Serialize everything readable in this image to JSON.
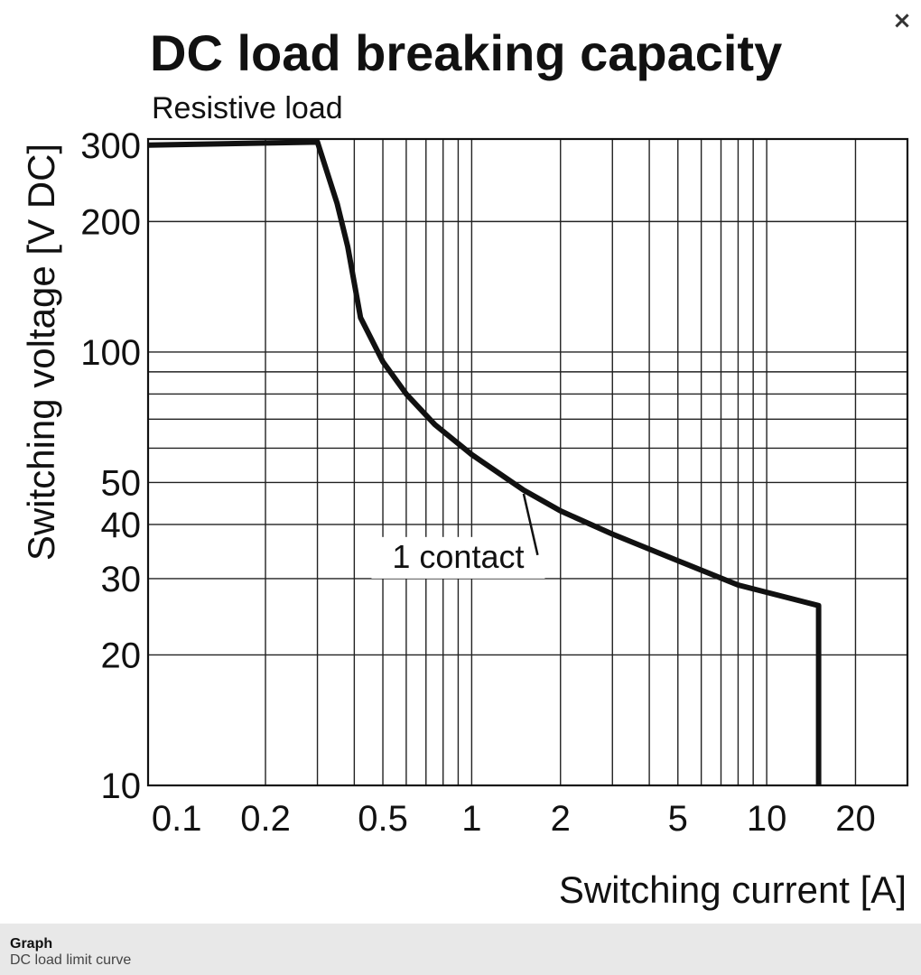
{
  "viewer": {
    "close_label": "×"
  },
  "caption": {
    "title": "Graph",
    "subtitle": "DC load limit curve"
  },
  "chart_data": {
    "type": "line",
    "title": "DC load breaking capacity",
    "subtitle": "Resistive load",
    "xlabel": "Switching current [A]",
    "ylabel": "Switching voltage [V DC]",
    "x_scale": "log",
    "y_scale": "log",
    "xlim": [
      0.08,
      30
    ],
    "ylim": [
      10,
      310
    ],
    "grid": true,
    "x_ticks": [
      {
        "value": 0.1,
        "label": "0.1"
      },
      {
        "value": 0.2,
        "label": "0.2"
      },
      {
        "value": 0.5,
        "label": "0.5"
      },
      {
        "value": 1,
        "label": "1"
      },
      {
        "value": 2,
        "label": "2"
      },
      {
        "value": 5,
        "label": "5"
      },
      {
        "value": 10,
        "label": "10"
      },
      {
        "value": 20,
        "label": "20"
      }
    ],
    "y_ticks": [
      {
        "value": 10,
        "label": "10"
      },
      {
        "value": 20,
        "label": "20"
      },
      {
        "value": 30,
        "label": "30"
      },
      {
        "value": 40,
        "label": "40"
      },
      {
        "value": 50,
        "label": "50"
      },
      {
        "value": 100,
        "label": "100"
      },
      {
        "value": 200,
        "label": "200"
      },
      {
        "value": 300,
        "label": "300"
      }
    ],
    "x_grid": [
      0.2,
      0.3,
      0.4,
      0.5,
      0.6,
      0.7,
      0.8,
      0.9,
      1,
      2,
      3,
      4,
      5,
      6,
      7,
      8,
      9,
      10,
      20
    ],
    "y_grid": [
      20,
      30,
      40,
      50,
      60,
      70,
      80,
      90,
      100,
      200
    ],
    "series": [
      {
        "name": "1 contact",
        "x": [
          0.08,
          0.3,
          0.35,
          0.38,
          0.42,
          0.5,
          0.6,
          0.75,
          1,
          1.5,
          2,
          3,
          5,
          8,
          15,
          15
        ],
        "y": [
          300,
          305,
          220,
          175,
          120,
          95,
          80,
          68,
          58,
          48,
          43,
          38,
          33,
          29,
          26,
          10
        ]
      }
    ],
    "annotations": [
      {
        "text": "1 contact",
        "x": 0.9,
        "y": 34,
        "points_to": {
          "x": 1.5,
          "y": 48
        }
      }
    ]
  }
}
